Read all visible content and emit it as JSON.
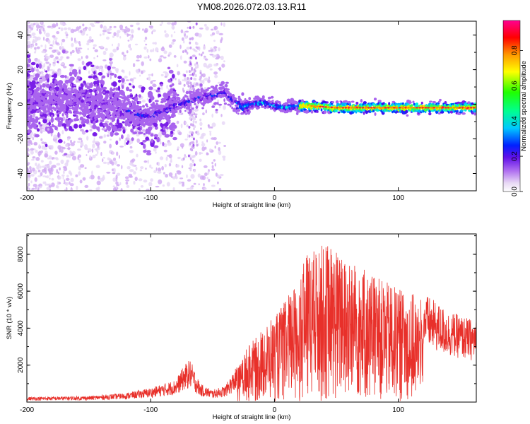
{
  "title": "YM08.2026.072.03.13.R11",
  "chart_data": [
    {
      "type": "heatmap",
      "name": "spectrogram",
      "xlabel": "Height of straight line (km)",
      "ylabel": "Frequency (Hz)",
      "xlim": [
        -200,
        163
      ],
      "ylim": [
        -50,
        48
      ],
      "xticks": [
        -200,
        -100,
        0,
        100
      ],
      "yticks": [
        -40,
        -20,
        0,
        20,
        40
      ],
      "ridge": {
        "x": [
          -200,
          -175,
          -150,
          -130,
          -110,
          -100,
          -90,
          -80,
          -70,
          -60,
          -50,
          -40,
          -35,
          -30,
          -25,
          -20,
          -10,
          0,
          10,
          20,
          30,
          50,
          70,
          100,
          130,
          163
        ],
        "y": [
          1,
          2,
          1,
          0,
          -6,
          -7,
          -4,
          -1,
          1,
          4,
          5,
          7,
          3,
          0,
          -2,
          0,
          1,
          -1,
          -2,
          -1,
          -1,
          -2,
          -2,
          -2,
          -2,
          -2
        ]
      },
      "colorbar": {
        "label": "Normalized spectral amplitude",
        "ticks": [
          0.0,
          0.2,
          0.4,
          0.6,
          0.8
        ],
        "range": [
          0,
          0.97
        ]
      }
    },
    {
      "type": "line",
      "name": "snr",
      "xlabel": "Height of straight line (km)",
      "ylabel": "SNR (10 * v/v)",
      "xlim": [
        -200,
        163
      ],
      "ylim": [
        0,
        9100
      ],
      "xticks": [
        -200,
        -100,
        0,
        100
      ],
      "yticks": [
        2000,
        4000,
        6000,
        8000
      ],
      "color": "#e8302a",
      "envelope": {
        "x": [
          -200,
          -150,
          -120,
          -100,
          -80,
          -72,
          -68,
          -60,
          -50,
          -40,
          -30,
          -20,
          -10,
          0,
          10,
          20,
          25,
          40,
          60,
          80,
          100,
          120,
          140,
          163
        ],
        "y": [
          250,
          300,
          450,
          700,
          1100,
          1900,
          2100,
          900,
          600,
          800,
          1800,
          3200,
          3800,
          4600,
          5600,
          6800,
          8000,
          8600,
          7600,
          6800,
          6200,
          5400,
          4500,
          4000
        ]
      }
    }
  ]
}
